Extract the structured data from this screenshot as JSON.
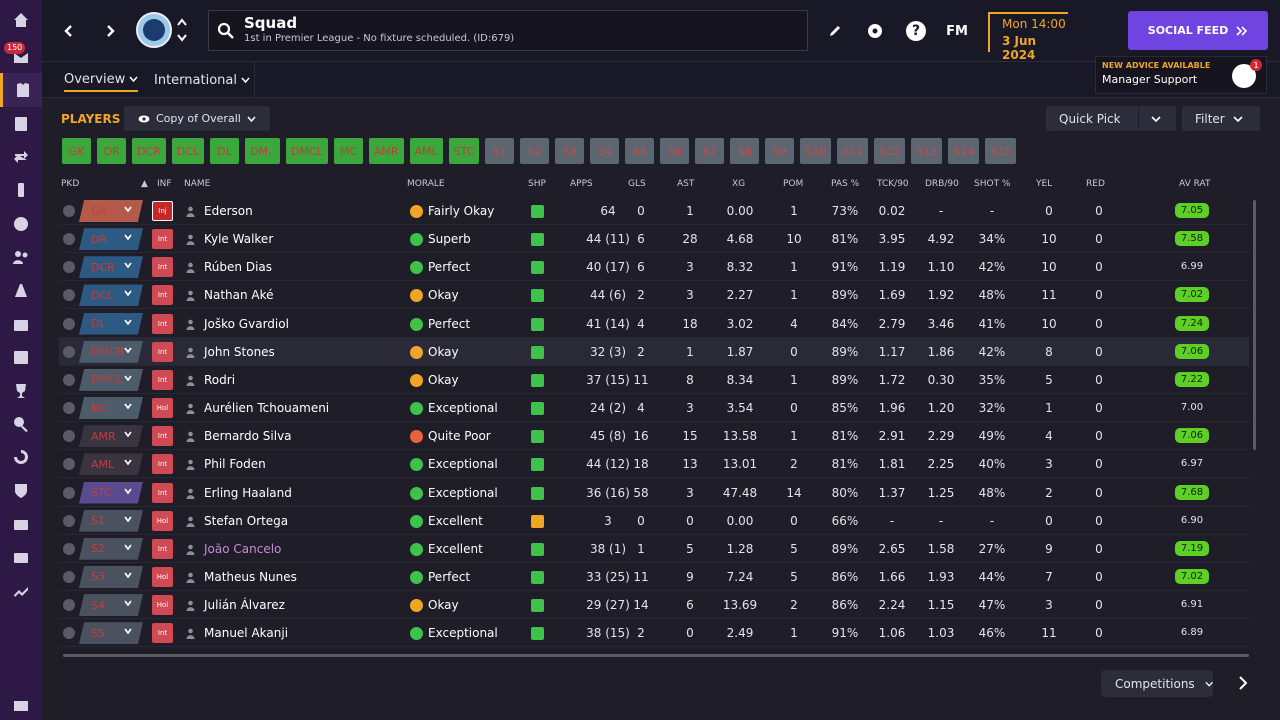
{
  "sidebar": {
    "items": [
      {
        "icon": "home-icon"
      },
      {
        "icon": "inbox-icon",
        "badge": "150"
      },
      {
        "icon": "squad-icon",
        "active": true
      },
      {
        "icon": "clipboard-icon"
      },
      {
        "icon": "transfer-icon"
      },
      {
        "icon": "dynamics-icon"
      },
      {
        "icon": "ball-icon"
      },
      {
        "icon": "staff-icon"
      },
      {
        "icon": "training-icon"
      },
      {
        "icon": "medical-icon"
      },
      {
        "icon": "calendar-icon"
      },
      {
        "icon": "trophy-icon"
      },
      {
        "icon": "scouting-icon"
      },
      {
        "icon": "swap-icon"
      },
      {
        "icon": "club-icon"
      },
      {
        "icon": "briefcase-icon"
      },
      {
        "icon": "finance-icon"
      },
      {
        "icon": "trend-icon"
      }
    ]
  },
  "header": {
    "title": "Squad",
    "subtitle": "1st in Premier League - No fixture scheduled. (ID:679)",
    "date_line1": "Mon 14:00",
    "date_line2": "3 Jun 2024",
    "social_feed": "SOCIAL FEED",
    "fm_logo": "FM",
    "help": "?"
  },
  "tabs": {
    "overview": "Overview",
    "international": "International"
  },
  "advice": {
    "label": "NEW ADVICE AVAILABLE",
    "title": "Manager Support",
    "badge": "1"
  },
  "toolbar": {
    "players_label": "PLAYERS",
    "view_label": "Copy of Overall",
    "quick_pick": "Quick Pick",
    "filter": "Filter"
  },
  "positions": [
    "GK",
    "DR",
    "DCR",
    "DCL",
    "DL",
    "DM..",
    "DMCL",
    "MC",
    "AMR",
    "AML",
    "STC",
    "S1",
    "S2",
    "S3",
    "S4",
    "S5",
    "S6",
    "S7",
    "S8",
    "S9",
    "S10",
    "S11",
    "S12",
    "S13",
    "S14",
    "S15"
  ],
  "columns": {
    "pkd": "PKD",
    "inf": "INF",
    "name": "NAME",
    "morale": "MORALE",
    "shp": "SHP",
    "apps": "APPS",
    "gls": "GLS",
    "ast": "AST",
    "xg": "XG",
    "pom": "POM",
    "pas": "PAS %",
    "tck": "TCK/90",
    "drb": "DRB/90",
    "shot": "SHOT %",
    "yel": "YEL",
    "red": "RED",
    "avrat": "AV RAT"
  },
  "colors": {
    "morale_okay": "#f0a526",
    "morale_good": "#3ec24a",
    "morale_poor": "#e8623a",
    "shp_good": "#3ec24a",
    "shp_warn": "#f0a526",
    "pos_gk": "#b45a4a",
    "pos_def": "#2d5a82",
    "pos_dm": "#4d5c6a",
    "pos_mid": "#5a2a32",
    "pos_amr": "#3a3440",
    "pos_st": "#5a4a8e",
    "pos_sub": "#4a5260",
    "inf_inj": "#c42828",
    "inf_int": "#cf4a52",
    "inf_hol": "#cf4a52"
  },
  "players": [
    {
      "pos": "GK",
      "pos_style": "gk",
      "inf": "Inj",
      "name": "Ederson",
      "morale": "Fairly Okay",
      "morale_kind": "okay",
      "shp": "good",
      "apps": "64",
      "gls": "0",
      "ast": "1",
      "xg": "0.00",
      "pom": "1",
      "pas": "73%",
      "tck": "0.02",
      "drb": "-",
      "shot": "-",
      "yel": "0",
      "red": "0",
      "avrat": "7.05",
      "avr_good": true
    },
    {
      "pos": "DR",
      "pos_style": "def",
      "inf": "Int",
      "name": "Kyle Walker",
      "morale": "Superb",
      "morale_kind": "good",
      "shp": "good",
      "apps": "44 (11)",
      "gls": "6",
      "ast": "28",
      "xg": "4.68",
      "pom": "10",
      "pas": "81%",
      "tck": "3.95",
      "drb": "4.92",
      "shot": "34%",
      "yel": "10",
      "red": "0",
      "avrat": "7.58",
      "avr_good": true
    },
    {
      "pos": "DCR",
      "pos_style": "def",
      "inf": "Int",
      "name": "Rúben Dias",
      "morale": "Perfect",
      "morale_kind": "good",
      "shp": "good",
      "apps": "40 (17)",
      "gls": "6",
      "ast": "3",
      "xg": "8.32",
      "pom": "1",
      "pas": "91%",
      "tck": "1.19",
      "drb": "1.10",
      "shot": "42%",
      "yel": "10",
      "red": "0",
      "avrat": "6.99",
      "avr_good": false
    },
    {
      "pos": "DCL",
      "pos_style": "def",
      "inf": "Int",
      "name": "Nathan Aké",
      "morale": "Okay",
      "morale_kind": "okay",
      "shp": "good",
      "apps": "44 (6)",
      "gls": "2",
      "ast": "3",
      "xg": "2.27",
      "pom": "1",
      "pas": "89%",
      "tck": "1.69",
      "drb": "1.92",
      "shot": "48%",
      "yel": "11",
      "red": "0",
      "avrat": "7.02",
      "avr_good": true
    },
    {
      "pos": "DL",
      "pos_style": "def",
      "inf": "Int",
      "name": "Joško Gvardiol",
      "morale": "Perfect",
      "morale_kind": "good",
      "shp": "good",
      "apps": "41 (14)",
      "gls": "4",
      "ast": "18",
      "xg": "3.02",
      "pom": "4",
      "pas": "84%",
      "tck": "2.79",
      "drb": "3.46",
      "shot": "41%",
      "yel": "10",
      "red": "0",
      "avrat": "7.24",
      "avr_good": true
    },
    {
      "pos": "DMCR",
      "pos_style": "dm",
      "inf": "Int",
      "name": "John Stones",
      "morale": "Okay",
      "morale_kind": "okay",
      "shp": "good",
      "apps": "32 (3)",
      "gls": "2",
      "ast": "1",
      "xg": "1.87",
      "pom": "0",
      "pas": "89%",
      "tck": "1.17",
      "drb": "1.86",
      "shot": "42%",
      "yel": "8",
      "red": "0",
      "avrat": "7.06",
      "avr_good": true,
      "highlight": true
    },
    {
      "pos": "DMCL",
      "pos_style": "dm",
      "inf": "Int",
      "name": "Rodri",
      "morale": "Okay",
      "morale_kind": "okay",
      "shp": "good",
      "apps": "37 (15)",
      "gls": "11",
      "ast": "8",
      "xg": "8.34",
      "pom": "1",
      "pas": "89%",
      "tck": "1.72",
      "drb": "0.30",
      "shot": "35%",
      "yel": "5",
      "red": "0",
      "avrat": "7.22",
      "avr_good": true
    },
    {
      "pos": "MC",
      "pos_style": "dm",
      "inf": "Hol",
      "name": "Aurélien Tchouameni",
      "morale": "Exceptional",
      "morale_kind": "good",
      "shp": "good",
      "apps": "24 (2)",
      "gls": "4",
      "ast": "3",
      "xg": "3.54",
      "pom": "0",
      "pas": "85%",
      "tck": "1.96",
      "drb": "1.20",
      "shot": "32%",
      "yel": "1",
      "red": "0",
      "avrat": "7.00",
      "avr_good": false
    },
    {
      "pos": "AMR",
      "pos_style": "amr",
      "inf": "Int",
      "name": "Bernardo Silva",
      "morale": "Quite Poor",
      "morale_kind": "poor",
      "shp": "good",
      "apps": "45 (8)",
      "gls": "16",
      "ast": "15",
      "xg": "13.58",
      "pom": "1",
      "pas": "81%",
      "tck": "2.91",
      "drb": "2.29",
      "shot": "49%",
      "yel": "4",
      "red": "0",
      "avrat": "7.06",
      "avr_good": true
    },
    {
      "pos": "AML",
      "pos_style": "amr",
      "inf": "Int",
      "name": "Phil Foden",
      "morale": "Exceptional",
      "morale_kind": "good",
      "shp": "good",
      "apps": "44 (12)",
      "gls": "18",
      "ast": "13",
      "xg": "13.01",
      "pom": "2",
      "pas": "81%",
      "tck": "1.81",
      "drb": "2.25",
      "shot": "40%",
      "yel": "3",
      "red": "0",
      "avrat": "6.97",
      "avr_good": false
    },
    {
      "pos": "STC",
      "pos_style": "st",
      "inf": "Int",
      "name": "Erling Haaland",
      "morale": "Exceptional",
      "morale_kind": "good",
      "shp": "good",
      "apps": "36 (16)",
      "gls": "58",
      "ast": "3",
      "xg": "47.48",
      "pom": "14",
      "pas": "80%",
      "tck": "1.37",
      "drb": "1.25",
      "shot": "48%",
      "yel": "2",
      "red": "0",
      "avrat": "7.68",
      "avr_good": true
    },
    {
      "pos": "S1",
      "pos_style": "sub",
      "inf": "Hol",
      "name": "Stefan Ortega",
      "morale": "Excellent",
      "morale_kind": "good",
      "shp": "warn",
      "apps": "3",
      "gls": "0",
      "ast": "0",
      "xg": "0.00",
      "pom": "0",
      "pas": "66%",
      "tck": "-",
      "drb": "-",
      "shot": "-",
      "yel": "0",
      "red": "0",
      "avrat": "6.90",
      "avr_good": false
    },
    {
      "pos": "S2",
      "pos_style": "sub",
      "inf": "Int",
      "name": "João Cancelo",
      "morale": "Excellent",
      "morale_kind": "good",
      "shp": "neutral",
      "apps": "38 (1)",
      "gls": "1",
      "ast": "5",
      "xg": "1.28",
      "pom": "5",
      "pas": "89%",
      "tck": "2.65",
      "drb": "1.58",
      "shot": "27%",
      "yel": "9",
      "red": "0",
      "avrat": "7.19",
      "avr_good": true,
      "loan": true
    },
    {
      "pos": "S3",
      "pos_style": "sub",
      "inf": "Hol",
      "name": "Matheus Nunes",
      "morale": "Perfect",
      "morale_kind": "good",
      "shp": "good",
      "apps": "33 (25)",
      "gls": "11",
      "ast": "9",
      "xg": "7.24",
      "pom": "5",
      "pas": "86%",
      "tck": "1.66",
      "drb": "1.93",
      "shot": "44%",
      "yel": "7",
      "red": "0",
      "avrat": "7.02",
      "avr_good": true
    },
    {
      "pos": "S4",
      "pos_style": "sub",
      "inf": "Hol",
      "name": "Julián Álvarez",
      "morale": "Okay",
      "morale_kind": "okay",
      "shp": "good",
      "apps": "29 (27)",
      "gls": "14",
      "ast": "6",
      "xg": "13.69",
      "pom": "2",
      "pas": "86%",
      "tck": "2.24",
      "drb": "1.15",
      "shot": "47%",
      "yel": "3",
      "red": "0",
      "avrat": "6.91",
      "avr_good": false
    },
    {
      "pos": "S5",
      "pos_style": "sub",
      "inf": "Int",
      "name": "Manuel Akanji",
      "morale": "Exceptional",
      "morale_kind": "good",
      "shp": "good",
      "apps": "38 (15)",
      "gls": "2",
      "ast": "0",
      "xg": "2.49",
      "pom": "1",
      "pas": "91%",
      "tck": "1.06",
      "drb": "1.03",
      "shot": "46%",
      "yel": "11",
      "red": "0",
      "avrat": "6.89",
      "avr_good": false
    }
  ],
  "footer": {
    "competitions": "Competitions"
  }
}
